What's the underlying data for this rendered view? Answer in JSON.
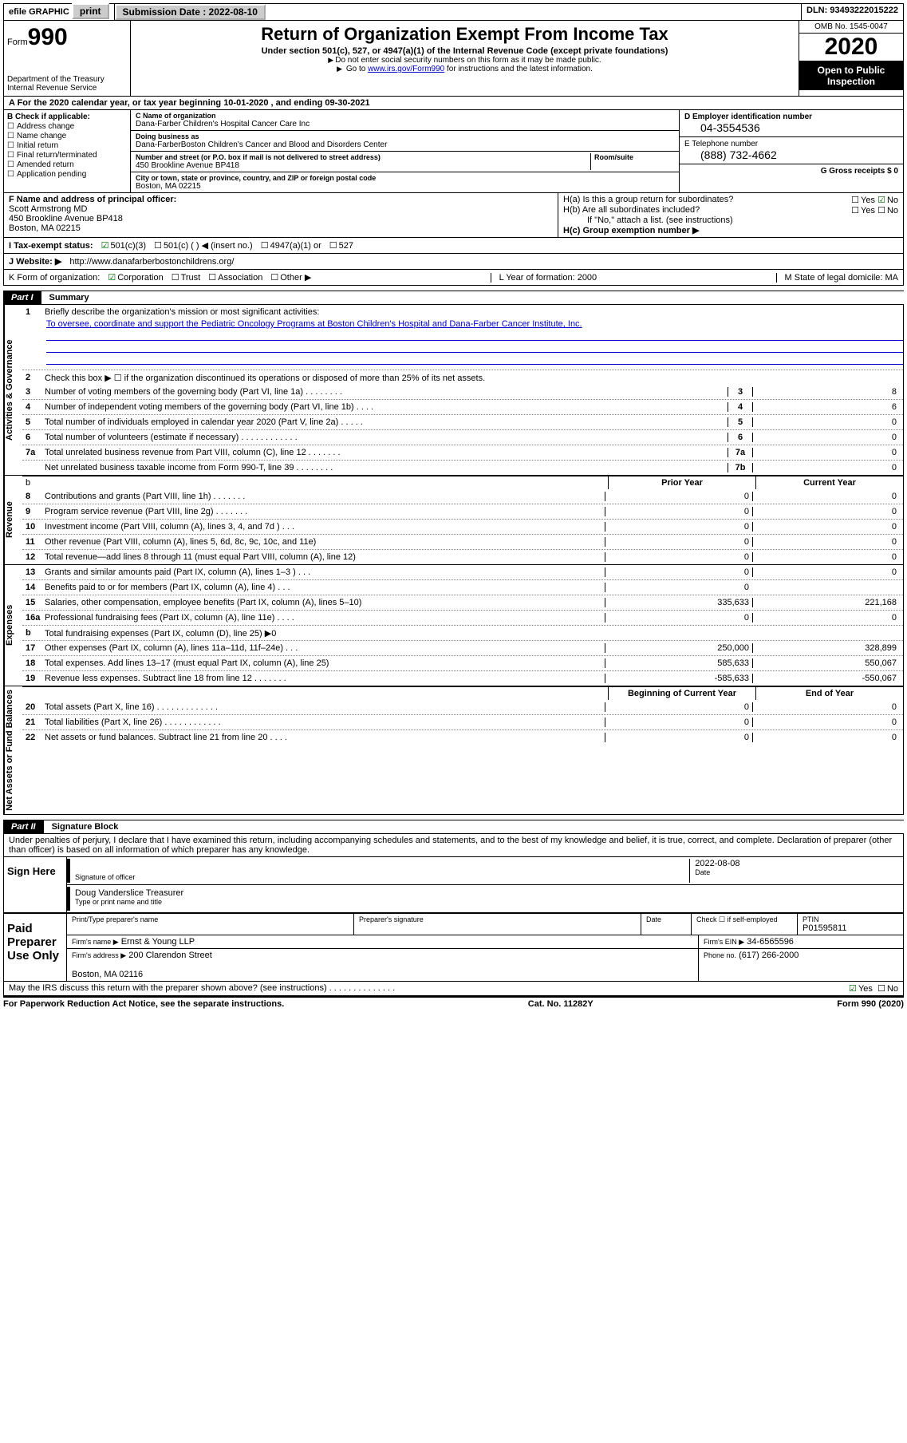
{
  "topbar": {
    "efile": "efile GRAPHIC",
    "print": "print",
    "subdate_label": "Submission Date : 2022-08-10",
    "dln": "DLN: 93493222015222"
  },
  "header": {
    "form_small": "Form",
    "form_big": "990",
    "dept": "Department of the Treasury\nInternal Revenue Service",
    "title": "Return of Organization Exempt From Income Tax",
    "sub1": "Under section 501(c), 527, or 4947(a)(1) of the Internal Revenue Code (except private foundations)",
    "sub2": "Do not enter social security numbers on this form as it may be made public.",
    "sub3_pre": "Go to ",
    "sub3_link": "www.irs.gov/Form990",
    "sub3_post": " for instructions and the latest information.",
    "omb": "OMB No. 1545-0047",
    "year": "2020",
    "open": "Open to Public Inspection"
  },
  "rowA": "A  For the 2020 calendar year, or tax year beginning 10-01-2020     , and ending 09-30-2021",
  "colB": {
    "label": "B Check if applicable:",
    "items": [
      "Address change",
      "Name change",
      "Initial return",
      "Final return/terminated",
      "Amended return",
      "Application pending"
    ]
  },
  "colC": {
    "name_label": "C Name of organization",
    "name": "Dana-Farber Children's Hospital Cancer Care Inc",
    "dba_label": "Doing business as",
    "dba": "Dana-FarberBoston Children's Cancer and Blood and Disorders Center",
    "addr_label": "Number and street (or P.O. box if mail is not delivered to street address)",
    "addr": "450 Brookline Avenue BP418",
    "room": "Room/suite",
    "city_label": "City or town, state or province, country, and ZIP or foreign postal code",
    "city": "Boston, MA  02215"
  },
  "colDE": {
    "d_label": "D Employer identification number",
    "d_val": "04-3554536",
    "e_label": "E Telephone number",
    "e_val": "(888) 732-4662",
    "g_label": "G Gross receipts $ 0"
  },
  "rowF": {
    "label": "F  Name and address of principal officer:",
    "name": "Scott Armstrong MD",
    "addr1": "450 Brookline Avenue BP418",
    "addr2": "Boston, MA  02215"
  },
  "rowH": {
    "a": "H(a)  Is this a group return for subordinates?",
    "b": "H(b)  Are all subordinates included?",
    "b_note": "If \"No,\" attach a list. (see instructions)",
    "c": "H(c)  Group exemption number ▶",
    "yes": "Yes",
    "no": "No"
  },
  "rowI": {
    "label": "I    Tax-exempt status:",
    "o1": "501(c)(3)",
    "o2": "501(c) (   ) ◀ (insert no.)",
    "o3": "4947(a)(1) or",
    "o4": "527"
  },
  "rowJ": {
    "label": "J   Website: ▶",
    "url": "http://www.danafarberbostonchildrens.org/"
  },
  "rowK": {
    "label": "K Form of organization:",
    "o1": "Corporation",
    "o2": "Trust",
    "o3": "Association",
    "o4": "Other ▶",
    "l": "L Year of formation: 2000",
    "m": "M State of legal domicile: MA"
  },
  "part1": {
    "tag": "Part I",
    "title": "Summary"
  },
  "vtabs": {
    "gov": "Activities & Governance",
    "rev": "Revenue",
    "exp": "Expenses",
    "net": "Net Assets or Fund Balances"
  },
  "summary": {
    "l1": "Briefly describe the organization's mission or most significant activities:",
    "l1_text": "To oversee, coordinate and support the Pediatric Oncology Programs at Boston Children's Hospital and Dana-Farber Cancer Institute, Inc.",
    "l2": "Check this box ▶ ☐  if the organization discontinued its operations or disposed of more than 25% of its net assets.",
    "rows_gov": [
      {
        "n": "3",
        "t": "Number of voting members of the governing body (Part VI, line 1a)  .   .   .   .   .   .   .   .",
        "b": "3",
        "v": "8"
      },
      {
        "n": "4",
        "t": "Number of independent voting members of the governing body (Part VI, line 1b)   .   .   .   .",
        "b": "4",
        "v": "6"
      },
      {
        "n": "5",
        "t": "Total number of individuals employed in calendar year 2020 (Part V, line 2a)   .   .   .   .   .",
        "b": "5",
        "v": "0"
      },
      {
        "n": "6",
        "t": "Total number of volunteers (estimate if necessary)   .   .   .   .   .   .   .   .   .   .   .   .",
        "b": "6",
        "v": "0"
      },
      {
        "n": "7a",
        "t": "Total unrelated business revenue from Part VIII, column (C), line 12   .   .   .   .   .   .   .",
        "b": "7a",
        "v": "0"
      },
      {
        "n": "",
        "t": "Net unrelated business taxable income from Form 990-T, line 39   .   .   .   .   .   .   .   .",
        "b": "7b",
        "v": "0"
      }
    ],
    "hdr_prior": "Prior Year",
    "hdr_curr": "Current Year",
    "rows_rev": [
      {
        "n": "8",
        "t": "Contributions and grants (Part VIII, line 1h)   .   .   .   .   .   .   .",
        "p": "0",
        "c": "0"
      },
      {
        "n": "9",
        "t": "Program service revenue (Part VIII, line 2g)   .   .   .   .   .   .   .",
        "p": "0",
        "c": "0"
      },
      {
        "n": "10",
        "t": "Investment income (Part VIII, column (A), lines 3, 4, and 7d )   .   .   .",
        "p": "0",
        "c": "0"
      },
      {
        "n": "11",
        "t": "Other revenue (Part VIII, column (A), lines 5, 6d, 8c, 9c, 10c, and 11e)",
        "p": "0",
        "c": "0"
      },
      {
        "n": "12",
        "t": "Total revenue—add lines 8 through 11 (must equal Part VIII, column (A), line 12)",
        "p": "0",
        "c": "0"
      }
    ],
    "rows_exp": [
      {
        "n": "13",
        "t": "Grants and similar amounts paid (Part IX, column (A), lines 1–3 )   .   .   .",
        "p": "0",
        "c": "0"
      },
      {
        "n": "14",
        "t": "Benefits paid to or for members (Part IX, column (A), line 4)   .   .   .",
        "p": "0",
        "c": ""
      },
      {
        "n": "15",
        "t": "Salaries, other compensation, employee benefits (Part IX, column (A), lines 5–10)",
        "p": "335,633",
        "c": "221,168"
      },
      {
        "n": "16a",
        "t": "Professional fundraising fees (Part IX, column (A), line 11e)   .   .   .   .",
        "p": "0",
        "c": "0"
      },
      {
        "n": "b",
        "t": "Total fundraising expenses (Part IX, column (D), line 25) ▶0",
        "p": "",
        "c": "",
        "shade": true
      },
      {
        "n": "17",
        "t": "Other expenses (Part IX, column (A), lines 11a–11d, 11f–24e)   .   .   .",
        "p": "250,000",
        "c": "328,899"
      },
      {
        "n": "18",
        "t": "Total expenses. Add lines 13–17 (must equal Part IX, column (A), line 25)",
        "p": "585,633",
        "c": "550,067"
      },
      {
        "n": "19",
        "t": "Revenue less expenses. Subtract line 18 from line 12   .   .   .   .   .   .   .",
        "p": "-585,633",
        "c": "-550,067"
      }
    ],
    "hdr_beg": "Beginning of Current Year",
    "hdr_end": "End of Year",
    "rows_net": [
      {
        "n": "20",
        "t": "Total assets (Part X, line 16)   .   .   .   .   .   .   .   .   .   .   .   .   .",
        "p": "0",
        "c": "0"
      },
      {
        "n": "21",
        "t": "Total liabilities (Part X, line 26)   .   .   .   .   .   .   .   .   .   .   .   .",
        "p": "0",
        "c": "0"
      },
      {
        "n": "22",
        "t": "Net assets or fund balances. Subtract line 21 from line 20   .   .   .   .",
        "p": "0",
        "c": "0"
      }
    ]
  },
  "part2": {
    "tag": "Part II",
    "title": "Signature Block"
  },
  "sig": {
    "perjury": "Under penalties of perjury, I declare that I have examined this return, including accompanying schedules and statements, and to the best of my knowledge and belief, it is true, correct, and complete. Declaration of preparer (other than officer) is based on all information of which preparer has any knowledge.",
    "sign_here": "Sign Here",
    "sig_officer": "Signature of officer",
    "date": "Date",
    "date_val": "2022-08-08",
    "name": "Doug Vanderslice  Treasurer",
    "type_print": "Type or print name and title",
    "paid": "Paid Preparer Use Only",
    "prep_name_label": "Print/Type preparer's name",
    "prep_sig_label": "Preparer's signature",
    "date_label": "Date",
    "check_self": "Check ☐ if self-employed",
    "ptin_label": "PTIN",
    "ptin": "P01595811",
    "firm_name_label": "Firm's name    ▶",
    "firm_name": "Ernst & Young LLP",
    "firm_ein_label": "Firm's EIN ▶",
    "firm_ein": "34-6565596",
    "firm_addr_label": "Firm's address ▶",
    "firm_addr": "200 Clarendon Street\n\nBoston, MA  02116",
    "phone_label": "Phone no.",
    "phone": "(617) 266-2000",
    "discuss": "May the IRS discuss this return with the preparer shown above? (see instructions)   .   .   .   .   .   .   .   .   .   .   .   .   .   .",
    "yes": "Yes",
    "no": "No"
  },
  "footer": {
    "left": "For Paperwork Reduction Act Notice, see the separate instructions.",
    "mid": "Cat. No. 11282Y",
    "right": "Form 990 (2020)"
  }
}
